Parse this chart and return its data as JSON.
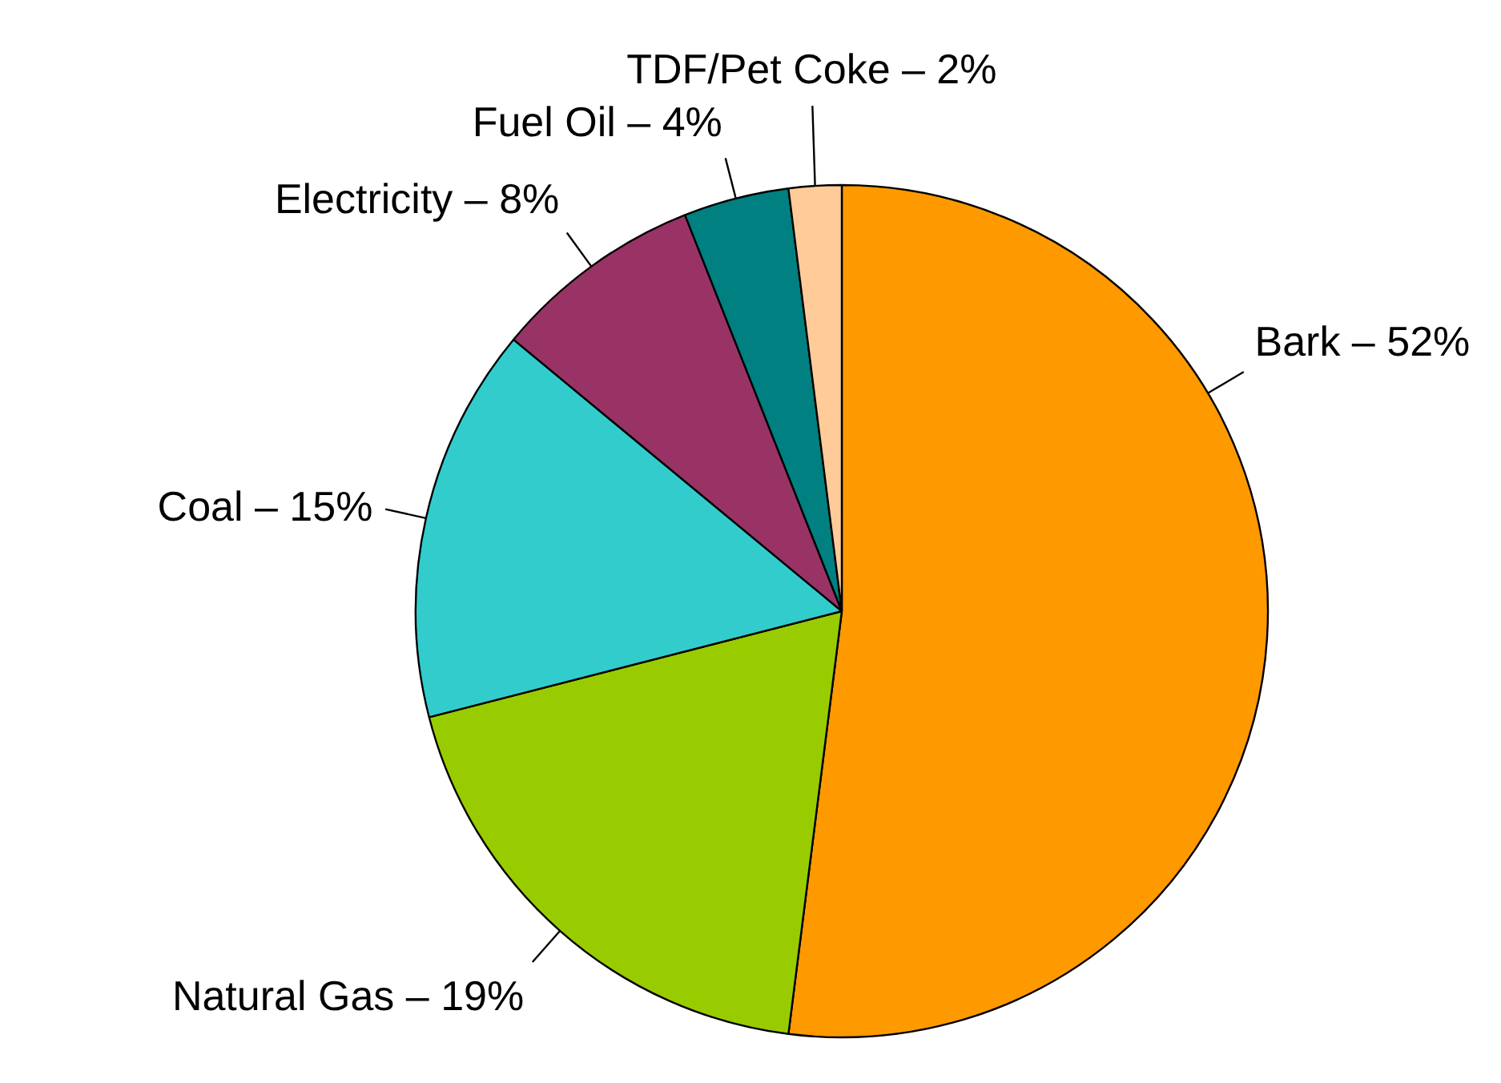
{
  "chart_data": {
    "type": "pie",
    "categories": [
      "Bark – 52%",
      "Natural Gas – 19%",
      "Coal – 15%",
      "Electricity – 8%",
      "Fuel Oil – 4%",
      "TDF/Pet Coke – 2%"
    ],
    "values": [
      52,
      19,
      15,
      8,
      4,
      2
    ],
    "colors": [
      "#ff9900",
      "#99cc00",
      "#33cccc",
      "#993366",
      "#008080",
      "#ffcc99"
    ]
  }
}
